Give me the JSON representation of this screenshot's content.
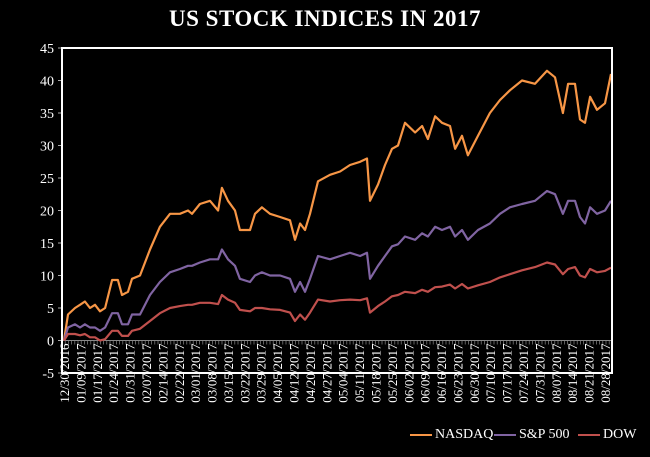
{
  "chart_data": {
    "type": "line",
    "title": "US STOCK INDICES IN 2017",
    "xlabel": "",
    "ylabel": "",
    "x_unit": "weeks since 12/30/2016 (approx.)",
    "ylim": [
      -5,
      45
    ],
    "yticks": [
      -5,
      0,
      5,
      10,
      15,
      20,
      25,
      30,
      35,
      40,
      45
    ],
    "xlim": [
      0,
      35.29
    ],
    "x_tick_labels": [
      "12/30/2016",
      "01/09/2017",
      "01/17/2017",
      "01/24/2017",
      "01/31/2017",
      "02/07/2017",
      "02/14/2017",
      "02/22/2017",
      "03/01/2017",
      "03/08/2017",
      "03/15/2017",
      "03/22/2017",
      "03/29/2017",
      "04/05/2017",
      "04/12/2017",
      "04/20/2017",
      "04/27/2017",
      "05/04/2017",
      "05/11/2017",
      "05/18/2017",
      "05/25/2017",
      "06/02/2017",
      "06/09/2017",
      "06/16/2017",
      "06/23/2017",
      "06/30/2017",
      "07/10/2017",
      "07/17/2017",
      "07/24/2017",
      "07/31/2017",
      "08/07/2017",
      "08/14/2017",
      "08/21/2017",
      "08/28/2017"
    ],
    "grid": false,
    "legend_position": "bottom-right",
    "x": [
      0,
      0.26,
      0.71,
      1.03,
      1.35,
      1.68,
      2.0,
      2.32,
      2.65,
      3.1,
      3.48,
      3.74,
      4.13,
      4.39,
      4.9,
      5.55,
      6.19,
      6.84,
      7.48,
      8.0,
      8.26,
      8.77,
      9.42,
      9.94,
      10.19,
      10.58,
      11.03,
      11.35,
      12.0,
      12.32,
      12.77,
      13.29,
      13.94,
      14.58,
      14.9,
      15.23,
      15.55,
      15.87,
      16.39,
      17.16,
      17.81,
      18.45,
      19.1,
      19.55,
      19.74,
      20.26,
      20.71,
      21.16,
      21.55,
      22.0,
      22.65,
      23.1,
      23.48,
      23.94,
      24.39,
      24.9,
      25.23,
      25.68,
      26.06,
      26.71,
      27.48,
      28.13,
      28.77,
      29.55,
      30.39,
      31.16,
      31.68,
      32.19,
      32.52,
      32.97,
      33.29,
      33.61,
      33.94,
      34.39,
      34.9,
      35.29
    ],
    "series": [
      {
        "name": "NASDAQ",
        "color": "#F79646",
        "values": [
          0,
          4,
          5,
          5.5,
          6,
          5,
          5.5,
          4.5,
          5,
          9.3,
          9.3,
          7,
          7.5,
          9.5,
          10,
          14,
          17.5,
          19.5,
          19.5,
          20,
          19.5,
          21,
          21.5,
          20,
          23.5,
          21.5,
          20,
          17,
          17,
          19.5,
          20.5,
          19.5,
          19,
          18.5,
          15.5,
          18,
          17,
          19.5,
          24.5,
          25.5,
          26,
          27,
          27.5,
          28,
          21.5,
          24,
          27,
          29.5,
          30,
          33.5,
          32,
          33,
          31,
          34.5,
          33.5,
          33,
          29.5,
          31.5,
          28.5,
          31.5,
          35,
          37,
          38.5,
          40,
          39.5,
          41.5,
          40.5,
          35,
          39.5,
          39.5,
          34,
          33.5,
          37.5,
          35.5,
          36.5,
          41
        ]
      },
      {
        "name": "S&P 500",
        "color": "#8064A2",
        "values": [
          0,
          2,
          2.5,
          2,
          2.5,
          2,
          2,
          1.5,
          2,
          4.2,
          4.2,
          2.5,
          2.5,
          4,
          4,
          7,
          9,
          10.5,
          11,
          11.5,
          11.5,
          12,
          12.5,
          12.5,
          14,
          12.5,
          11.5,
          9.5,
          9,
          10,
          10.5,
          10,
          10,
          9.5,
          7.5,
          9,
          7.5,
          9.5,
          13,
          12.5,
          13,
          13.5,
          13,
          13.5,
          9.5,
          11.5,
          13,
          14.5,
          14.8,
          16,
          15.5,
          16.5,
          16,
          17.5,
          17,
          17.5,
          16,
          17,
          15.5,
          17,
          18,
          19.5,
          20.5,
          21,
          21.5,
          23,
          22.5,
          19.5,
          21.5,
          21.5,
          19,
          18,
          20.5,
          19.5,
          20,
          21.5
        ]
      },
      {
        "name": "DOW",
        "color": "#C0504D",
        "values": [
          0,
          1,
          1,
          0.8,
          1,
          0.5,
          0.5,
          0,
          0.2,
          1.5,
          1.5,
          0.7,
          0.7,
          1.5,
          1.8,
          3,
          4.2,
          5,
          5.3,
          5.5,
          5.5,
          5.8,
          5.8,
          5.6,
          7,
          6.3,
          5.8,
          4.7,
          4.5,
          5,
          5,
          4.8,
          4.7,
          4.3,
          3,
          4,
          3.2,
          4.3,
          6.3,
          6,
          6.2,
          6.3,
          6.2,
          6.5,
          4.3,
          5.3,
          6,
          6.8,
          7,
          7.5,
          7.3,
          7.8,
          7.5,
          8.2,
          8.3,
          8.6,
          8,
          8.7,
          8,
          8.5,
          9,
          9.7,
          10.2,
          10.8,
          11.3,
          12,
          11.7,
          10.2,
          11,
          11.3,
          10,
          9.7,
          11,
          10.5,
          10.7,
          11.2
        ]
      }
    ]
  }
}
